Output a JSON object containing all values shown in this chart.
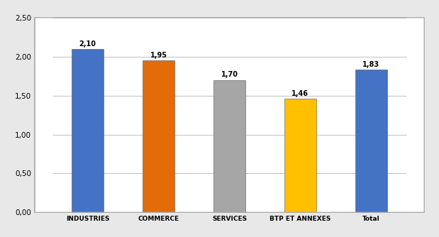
{
  "categories": [
    "INDUSTRIES",
    "COMMERCE",
    "SERVICES",
    "BTP ET ANNEXES",
    "Total"
  ],
  "values": [
    2.1,
    1.95,
    1.7,
    1.46,
    1.83
  ],
  "bar_colors": [
    "#4472C4",
    "#E36C09",
    "#A6A6A6",
    "#FFC000",
    "#4472C4"
  ],
  "ylim": [
    0,
    2.5
  ],
  "yticks": [
    0.0,
    0.5,
    1.0,
    1.5,
    2.0,
    2.5
  ],
  "ytick_labels": [
    "0,00",
    "0,50",
    "1,00",
    "1,50",
    "2,00",
    "2,50"
  ],
  "label_values": [
    "2,10",
    "1,95",
    "1,70",
    "1,46",
    "1,83"
  ],
  "background_color": "#FFFFFF",
  "outer_background": "#E8E8E8",
  "grid_color": "#C0C0C0",
  "bar_edge_color": "#555555",
  "label_fontsize": 7,
  "tick_fontsize": 7.5,
  "cat_fontsize": 6.5,
  "bar_width": 0.45
}
